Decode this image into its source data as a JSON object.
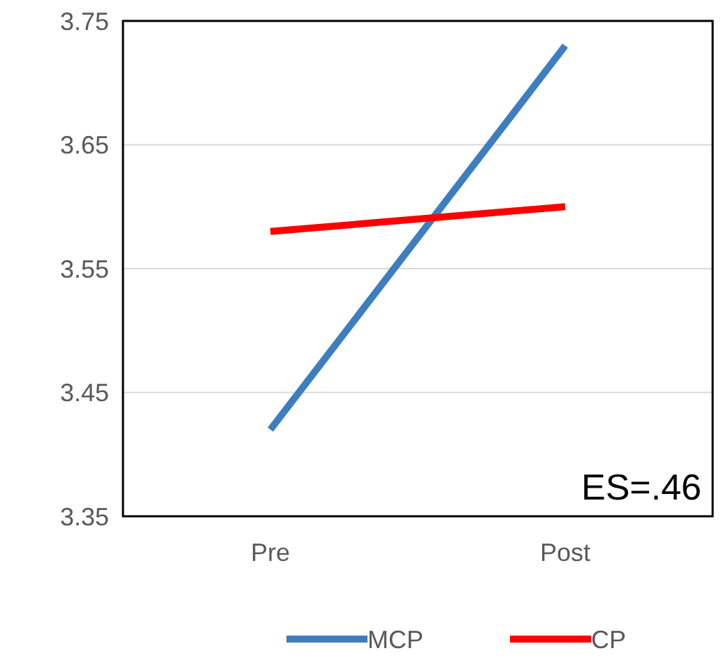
{
  "chart_data": {
    "type": "line",
    "categories": [
      "Pre",
      "Post"
    ],
    "series": [
      {
        "name": "MCP",
        "color": "#3d7ebf",
        "values": [
          3.42,
          3.73
        ]
      },
      {
        "name": "CP",
        "color": "#ff0000",
        "values": [
          3.58,
          3.6
        ]
      }
    ],
    "ylim": [
      3.35,
      3.75
    ],
    "yticks": [
      {
        "value": 3.35,
        "label": "3.35"
      },
      {
        "value": 3.45,
        "label": "3.45"
      },
      {
        "value": 3.55,
        "label": "3.55"
      },
      {
        "value": 3.65,
        "label": "3.65"
      },
      {
        "value": 3.75,
        "label": "3.75"
      }
    ],
    "grid": "y",
    "legend": "bottom",
    "marker": "none",
    "line_style": "solid",
    "annotations": [
      "ES=.46"
    ]
  }
}
